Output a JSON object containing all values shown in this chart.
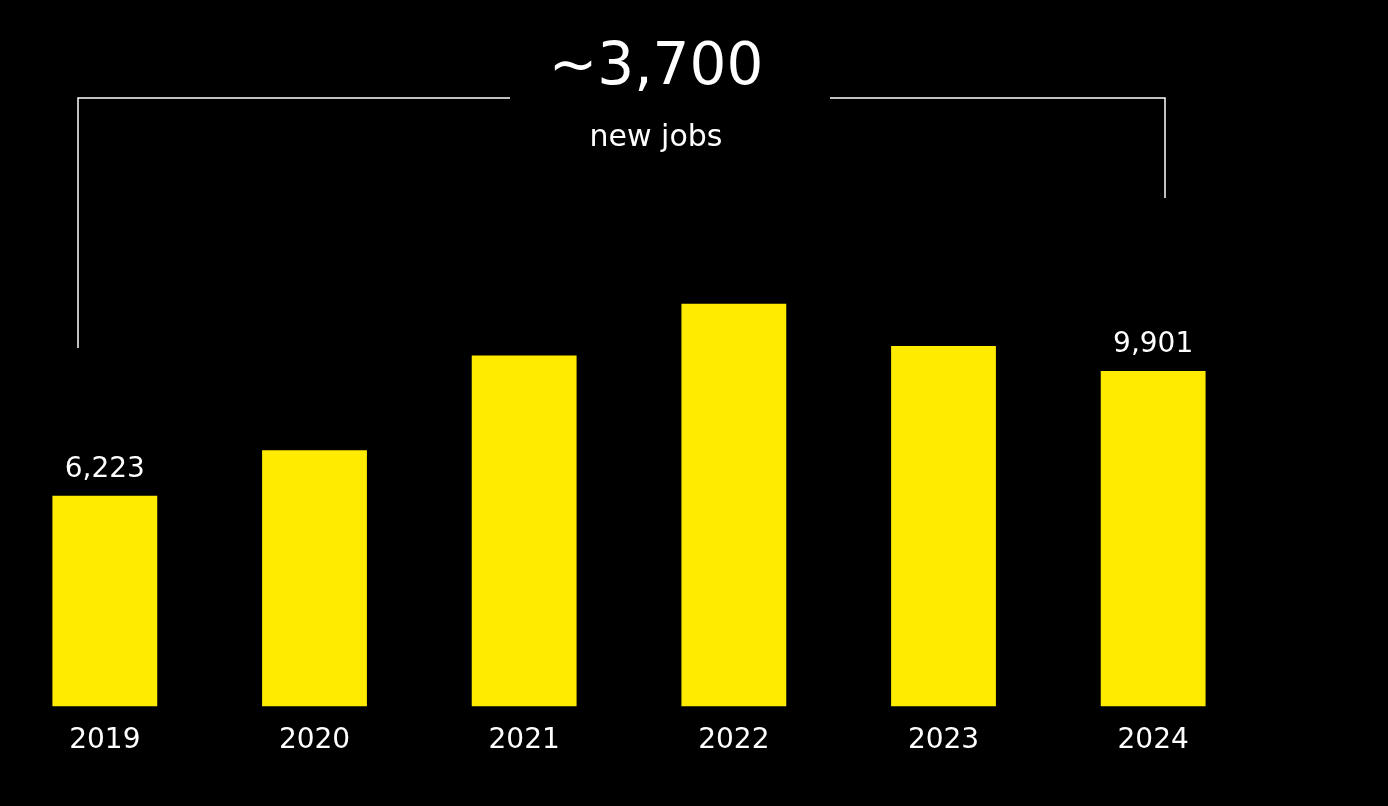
{
  "chart_data": {
    "type": "bar",
    "categories": [
      "2019",
      "2020",
      "2021",
      "2022",
      "2023",
      "2024"
    ],
    "values": [
      6223,
      7560,
      10360,
      11890,
      10640,
      9901
    ],
    "value_labels": [
      "6,223",
      null,
      null,
      null,
      null,
      "9,901"
    ],
    "color": "#ffeb00",
    "annotations": [
      "~3,700",
      "new jobs"
    ],
    "legend": false
  }
}
